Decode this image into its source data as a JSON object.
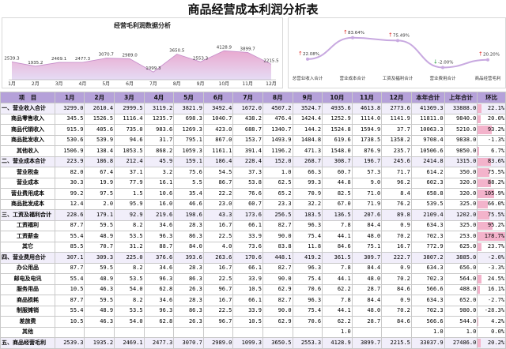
{
  "page_title": "商品经营成本利润分析表",
  "monthly_chart": {
    "title": "经营毛利润数据分析",
    "months": [
      "1月",
      "2月",
      "3月",
      "4月",
      "5月",
      "6月",
      "7月",
      "8月",
      "9月",
      "10月",
      "11月",
      "12月"
    ],
    "values": [
      2539.3,
      1935.2,
      2469.1,
      2477.3,
      3070.7,
      2989.0,
      1099.3,
      3650.5,
      2553.3,
      4128.9,
      3899.7,
      2215.5
    ],
    "value_labels": [
      "2539.3",
      "1935.2",
      "2469.1",
      "2477.3",
      "3070.7",
      "2989.0",
      "1099.3",
      "3650.5",
      "2553.3",
      "4128.9",
      "3899.7",
      "2215.5"
    ],
    "colors": {
      "area_top": "#e9a9d0",
      "area_bottom": "#e6dcf4",
      "line": "#c48bc9"
    }
  },
  "rate_chart": {
    "categories": [
      "总营业收入合计",
      "营业成本合计",
      "工资及福利合计",
      "营业费用合计",
      "商品经营毛利"
    ],
    "values": [
      22.08,
      83.64,
      75.49,
      -2.0,
      20.2
    ],
    "labels": [
      "22.08%",
      "83.64%",
      "75.49%",
      "-2.00%",
      "20.20%"
    ],
    "colors": {
      "line": "#c8a9e0",
      "up": "#e0302c",
      "down": "#2ba146"
    }
  },
  "table": {
    "headers": [
      "项　目",
      "1月",
      "2月",
      "3月",
      "4月",
      "5月",
      "6月",
      "7月",
      "8月",
      "9月",
      "10月",
      "11月",
      "12月",
      "本年合计",
      "上年合计",
      "环比"
    ],
    "rows": [
      {
        "level": 1,
        "name": "一、营业收入合计",
        "cells": [
          "3299.0",
          "2610.4",
          "2999.5",
          "3119.2",
          "3821.9",
          "3492.4",
          "1672.0",
          "4507.2",
          "3524.7",
          "4935.6",
          "4613.8",
          "2773.6",
          "41369.3",
          "33888.0"
        ],
        "rate": "22.1%",
        "rate_value": 22.1
      },
      {
        "level": 2,
        "name": "商品零售收入",
        "cells": [
          "345.5",
          "1526.5",
          "1116.4",
          "1235.7",
          "698.3",
          "1040.7",
          "438.2",
          "476.4",
          "1424.4",
          "1252.9",
          "1114.0",
          "1141.9",
          "11811.0",
          "9840.0"
        ],
        "rate": "20.0%",
        "rate_value": 20.0
      },
      {
        "level": 2,
        "name": "商品代销收入",
        "cells": [
          "915.9",
          "405.6",
          "735.0",
          "983.6",
          "1269.3",
          "423.0",
          "688.7",
          "1340.7",
          "144.2",
          "1524.8",
          "1594.9",
          "37.7",
          "10063.3",
          "5210.0"
        ],
        "rate": "93.2%",
        "rate_value": 93.2
      },
      {
        "level": 2,
        "name": "商品批发收入",
        "cells": [
          "530.6",
          "539.9",
          "94.6",
          "31.7",
          "795.1",
          "867.0",
          "153.7",
          "1493.9",
          "1484.8",
          "619.6",
          "1738.5",
          "1358.2",
          "9708.4",
          "9838.0"
        ],
        "rate": "-1.3%",
        "rate_value": -1.3
      },
      {
        "level": 2,
        "name": "其他收入",
        "cells": [
          "1506.9",
          "138.4",
          "1053.5",
          "868.2",
          "1059.3",
          "1161.1",
          "391.4",
          "1196.2",
          "471.3",
          "1548.0",
          "876.9",
          "235.7",
          "10506.6",
          "9850.0"
        ],
        "rate": "6.7%",
        "rate_value": 6.7
      },
      {
        "level": 1,
        "name": "二、营业成本合计",
        "cells": [
          "223.9",
          "186.8",
          "212.4",
          "45.9",
          "159.1",
          "186.4",
          "228.4",
          "152.0",
          "268.7",
          "308.7",
          "196.7",
          "245.6",
          "2414.8",
          "1315.0"
        ],
        "rate": "83.6%",
        "rate_value": 83.6
      },
      {
        "level": 2,
        "name": "营业税金",
        "cells": [
          "82.0",
          "67.4",
          "37.1",
          "3.2",
          "75.6",
          "54.5",
          "37.3",
          "1.0",
          "66.3",
          "60.7",
          "57.3",
          "71.7",
          "614.2",
          "350.0"
        ],
        "rate": "75.5%",
        "rate_value": 75.5
      },
      {
        "level": 2,
        "name": "营业成本",
        "cells": [
          "30.3",
          "19.9",
          "77.9",
          "16.1",
          "5.5",
          "86.7",
          "53.8",
          "62.5",
          "99.3",
          "44.8",
          "9.0",
          "96.2",
          "602.3",
          "320.0"
        ],
        "rate": "88.2%",
        "rate_value": 88.2
      },
      {
        "level": 2,
        "name": "营业费用成本",
        "cells": [
          "99.2",
          "97.5",
          "1.5",
          "10.6",
          "35.4",
          "22.2",
          "76.6",
          "65.2",
          "70.9",
          "82.5",
          "71.0",
          "8.4",
          "658.8",
          "320.0"
        ],
        "rate": "105.9%",
        "rate_value": 105.9
      },
      {
        "level": 2,
        "name": "商品批发成本",
        "cells": [
          "12.4",
          "2.0",
          "95.9",
          "16.0",
          "46.6",
          "23.0",
          "60.7",
          "23.3",
          "32.2",
          "67.0",
          "71.9",
          "76.2",
          "539.5",
          "325.0"
        ],
        "rate": "66.0%",
        "rate_value": 66.0
      },
      {
        "level": 1,
        "name": "三、工资及福利合计",
        "cells": [
          "228.6",
          "179.1",
          "92.9",
          "219.6",
          "198.6",
          "43.3",
          "173.6",
          "256.5",
          "183.5",
          "136.5",
          "207.6",
          "89.8",
          "2109.4",
          "1202.0"
        ],
        "rate": "75.5%",
        "rate_value": 75.5
      },
      {
        "level": 2,
        "name": "工资福利",
        "cells": [
          "87.7",
          "59.5",
          "8.2",
          "34.6",
          "28.3",
          "16.7",
          "66.1",
          "82.7",
          "96.3",
          "7.8",
          "84.4",
          "0.9",
          "634.3",
          "325.0"
        ],
        "rate": "95.2%",
        "rate_value": 95.2
      },
      {
        "level": 2,
        "name": "工资薪金",
        "cells": [
          "55.4",
          "48.9",
          "53.5",
          "96.3",
          "86.3",
          "22.5",
          "33.9",
          "90.0",
          "75.4",
          "44.1",
          "48.0",
          "70.2",
          "702.3",
          "253.0"
        ],
        "rate": "178.7%",
        "rate_value": 178.7
      },
      {
        "level": 2,
        "name": "其它",
        "cells": [
          "85.5",
          "70.7",
          "31.2",
          "88.7",
          "84.0",
          "4.0",
          "73.6",
          "83.8",
          "11.8",
          "84.6",
          "75.1",
          "16.7",
          "772.9",
          "625.0"
        ],
        "rate": "23.7%",
        "rate_value": 23.7
      },
      {
        "level": 1,
        "name": "四、营业费用合计",
        "cells": [
          "307.1",
          "309.3",
          "225.0",
          "376.6",
          "393.6",
          "263.6",
          "170.6",
          "448.1",
          "419.2",
          "361.5",
          "309.7",
          "222.7",
          "3807.2",
          "3885.0"
        ],
        "rate": "-2.0%",
        "rate_value": -2.0
      },
      {
        "level": 2,
        "name": "办公用品",
        "cells": [
          "87.7",
          "59.5",
          "8.2",
          "34.6",
          "28.3",
          "16.7",
          "66.1",
          "82.7",
          "96.3",
          "7.8",
          "84.4",
          "0.9",
          "634.3",
          "656.0"
        ],
        "rate": "-3.3%",
        "rate_value": -3.3
      },
      {
        "level": 2,
        "name": "邮电及电讯",
        "cells": [
          "55.4",
          "48.9",
          "53.5",
          "96.3",
          "86.3",
          "22.5",
          "33.9",
          "90.0",
          "75.4",
          "44.1",
          "48.0",
          "70.2",
          "702.3",
          "564.0"
        ],
        "rate": "24.5%",
        "rate_value": 24.5
      },
      {
        "level": 2,
        "name": "服务用品",
        "cells": [
          "10.5",
          "46.3",
          "54.0",
          "62.8",
          "26.3",
          "96.7",
          "10.5",
          "62.9",
          "70.6",
          "62.2",
          "28.7",
          "84.6",
          "566.6",
          "488.0"
        ],
        "rate": "16.1%",
        "rate_value": 16.1
      },
      {
        "level": 2,
        "name": "商品损耗",
        "cells": [
          "87.7",
          "59.5",
          "8.2",
          "34.6",
          "28.3",
          "16.7",
          "66.1",
          "82.7",
          "96.3",
          "7.8",
          "84.4",
          "0.9",
          "634.3",
          "652.0"
        ],
        "rate": "-2.7%",
        "rate_value": -2.7
      },
      {
        "level": 2,
        "name": "制服摊销",
        "cells": [
          "55.4",
          "48.9",
          "53.5",
          "96.3",
          "86.3",
          "22.5",
          "33.9",
          "90.0",
          "75.4",
          "44.1",
          "48.0",
          "70.2",
          "702.3",
          "980.0"
        ],
        "rate": "-28.3%",
        "rate_value": -28.3
      },
      {
        "level": 2,
        "name": "差旅费",
        "cells": [
          "10.5",
          "46.3",
          "54.0",
          "62.8",
          "26.3",
          "96.7",
          "10.5",
          "62.9",
          "70.6",
          "62.2",
          "28.7",
          "84.6",
          "566.6",
          "544.0"
        ],
        "rate": "4.2%",
        "rate_value": 4.2
      },
      {
        "level": 2,
        "name": "其他",
        "cells": [
          "",
          "",
          "",
          "",
          "",
          "",
          "",
          "",
          "",
          "1.0",
          "",
          "",
          "1.0",
          "1.0"
        ],
        "rate": "0.0%",
        "rate_value": 0.0
      },
      {
        "level": 1,
        "name": "五、商品经营毛利",
        "cells": [
          "2539.3",
          "1935.2",
          "2469.1",
          "2477.3",
          "3070.7",
          "2989.0",
          "1099.3",
          "3650.5",
          "2553.3",
          "4128.9",
          "3899.7",
          "2215.5",
          "33037.9",
          "27486.0"
        ],
        "rate": "20.2%",
        "rate_value": 20.2
      }
    ],
    "colors": {
      "header_bg": "#b5a1d9",
      "rate_bar": "#f3b3cb"
    }
  }
}
